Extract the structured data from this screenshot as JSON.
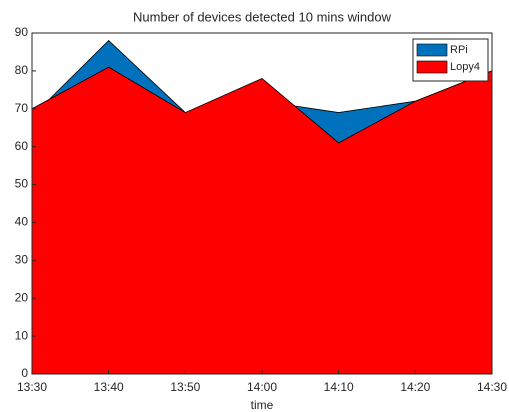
{
  "chart_data": {
    "type": "area",
    "title": "Number of devices detected 10 mins window",
    "x_label": "time",
    "categories": [
      "13:30",
      "13:40",
      "13:50",
      "14:00",
      "14:10",
      "14:20",
      "14:30"
    ],
    "series": [
      {
        "name": "RPi",
        "color": "#0072bd",
        "values": [
          68,
          88,
          69,
          72,
          69,
          72,
          80
        ]
      },
      {
        "name": "Lopy4",
        "color": "#ff0000",
        "values": [
          70,
          81,
          69,
          78,
          61,
          72,
          80
        ]
      }
    ],
    "ylim": [
      0,
      90
    ],
    "yticks": [
      0,
      10,
      20,
      30,
      40,
      50,
      60,
      70,
      80,
      90
    ],
    "legend": "top-right"
  }
}
